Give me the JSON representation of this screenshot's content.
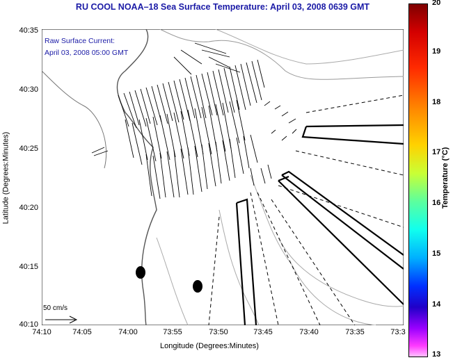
{
  "title": "RU COOL  NOAA–18  Sea Surface Temperature:  April 03, 2008 0639 GMT",
  "legend": {
    "line1": "Raw Surface Current:",
    "line2": "April 03, 2008 05:00 GMT"
  },
  "axes": {
    "xlabel": "Longitude (Degrees:Minutes)",
    "ylabel": "Latitude (Degrees:Minutes)",
    "xticks": [
      "74:10",
      "74:05",
      "74:00",
      "73:55",
      "73:50",
      "73:45",
      "73:40",
      "73:35",
      "73:3"
    ],
    "yticks": [
      "40:35",
      "40:30",
      "40:25",
      "40:20",
      "40:15",
      "40:10"
    ]
  },
  "scale_arrow_label": "50 cm/s",
  "colorbar": {
    "label": "Temperature (°C)",
    "ticks": [
      "20",
      "19",
      "18",
      "17",
      "16",
      "15",
      "14",
      "13"
    ],
    "range": [
      13,
      20
    ]
  }
}
